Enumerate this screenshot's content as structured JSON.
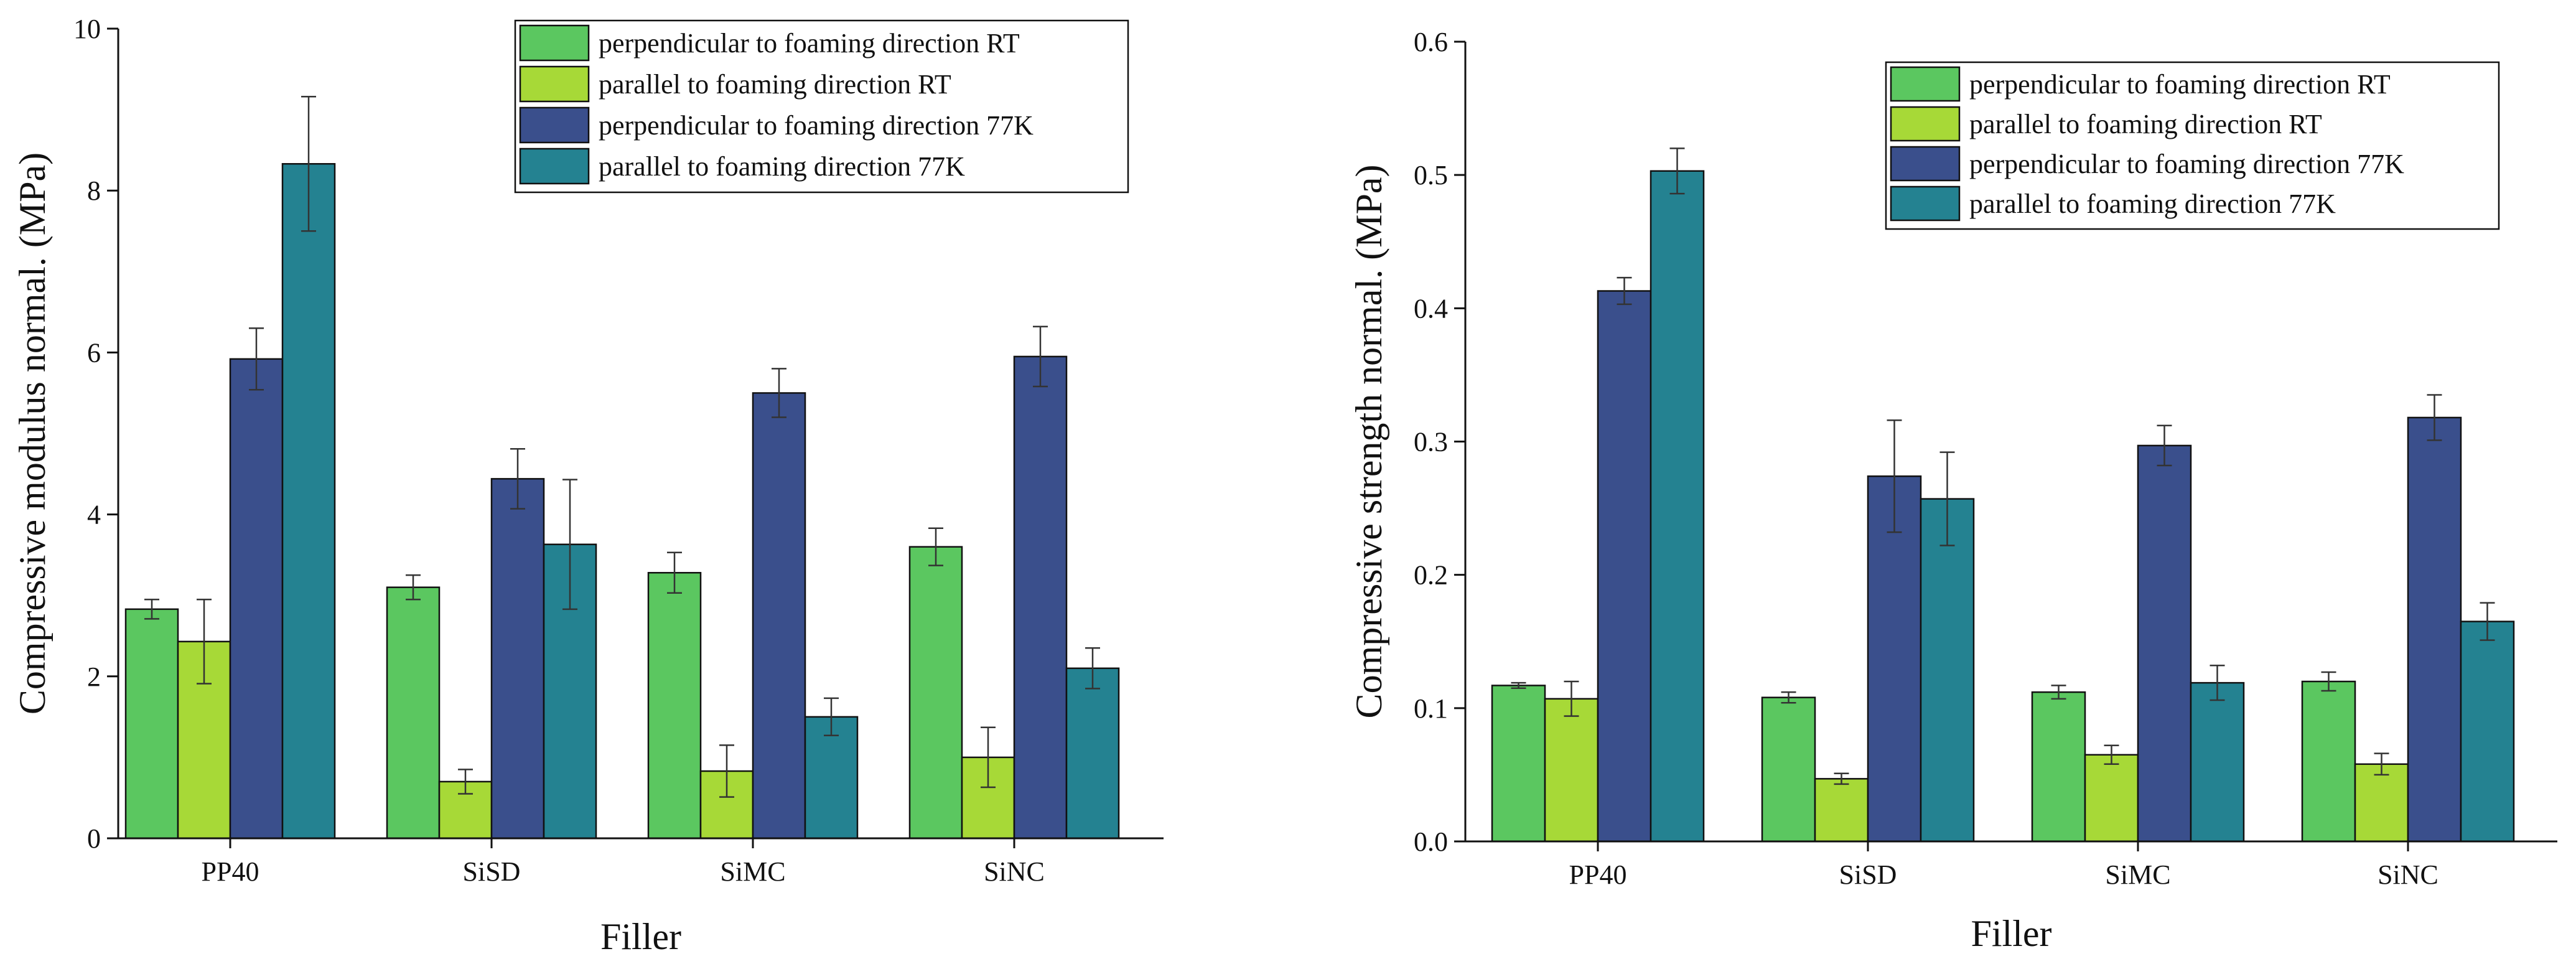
{
  "chart_data": [
    {
      "type": "bar",
      "title": "",
      "xlabel": "Filler",
      "ylabel": "Compressive modulus normal. (MPa)",
      "ylim": [
        0,
        10
      ],
      "yticks": [
        "0",
        "2",
        "4",
        "6",
        "8",
        "10"
      ],
      "ytick_values": [
        0,
        2,
        4,
        6,
        8,
        10
      ],
      "grid": false,
      "legend_position": "top-right",
      "categories": [
        "PP40",
        "SiSD",
        "SiMC",
        "SiNC"
      ],
      "series": [
        {
          "name": "perpendicular to foaming direction RT",
          "color": "#5bc760",
          "values": [
            2.83,
            3.1,
            3.28,
            3.6
          ],
          "errors": [
            0.12,
            0.15,
            0.25,
            0.23
          ]
        },
        {
          "name": "parallel to foaming direction RT",
          "color": "#a7d937",
          "values": [
            2.43,
            0.7,
            0.83,
            1.0
          ],
          "errors": [
            0.52,
            0.15,
            0.32,
            0.37
          ]
        },
        {
          "name": "perpendicular to foaming direction 77K",
          "color": "#3a4f8c",
          "values": [
            5.92,
            4.44,
            5.5,
            5.95
          ],
          "errors": [
            0.38,
            0.37,
            0.3,
            0.37
          ]
        },
        {
          "name": "parallel to foaming direction 77K",
          "color": "#248291",
          "values": [
            8.33,
            3.63,
            1.5,
            2.1
          ],
          "errors": [
            0.83,
            0.8,
            0.23,
            0.25
          ]
        }
      ]
    },
    {
      "type": "bar",
      "title": "",
      "xlabel": "Filler",
      "ylabel": "Compressive strength normal. (MPa)",
      "ylim": [
        0,
        0.6
      ],
      "yticks": [
        "0.0",
        "0.1",
        "0.2",
        "0.3",
        "0.4",
        "0.5",
        "0.6"
      ],
      "ytick_values": [
        0,
        0.1,
        0.2,
        0.3,
        0.4,
        0.5,
        0.6
      ],
      "grid": false,
      "legend_position": "top-right",
      "categories": [
        "PP40",
        "SiSD",
        "SiMC",
        "SiNC"
      ],
      "series": [
        {
          "name": "perpendicular to foaming direction RT",
          "color": "#5bc760",
          "values": [
            0.117,
            0.108,
            0.112,
            0.12
          ],
          "errors": [
            0.002,
            0.004,
            0.005,
            0.007
          ]
        },
        {
          "name": "parallel to foaming direction RT",
          "color": "#a7d937",
          "values": [
            0.107,
            0.047,
            0.065,
            0.058
          ],
          "errors": [
            0.013,
            0.004,
            0.007,
            0.008
          ]
        },
        {
          "name": "perpendicular to foaming direction 77K",
          "color": "#3a4f8c",
          "values": [
            0.413,
            0.274,
            0.297,
            0.318
          ],
          "errors": [
            0.01,
            0.042,
            0.015,
            0.017
          ]
        },
        {
          "name": "parallel to foaming direction 77K",
          "color": "#248291",
          "values": [
            0.503,
            0.257,
            0.119,
            0.165
          ],
          "errors": [
            0.017,
            0.035,
            0.013,
            0.014
          ]
        }
      ]
    }
  ]
}
